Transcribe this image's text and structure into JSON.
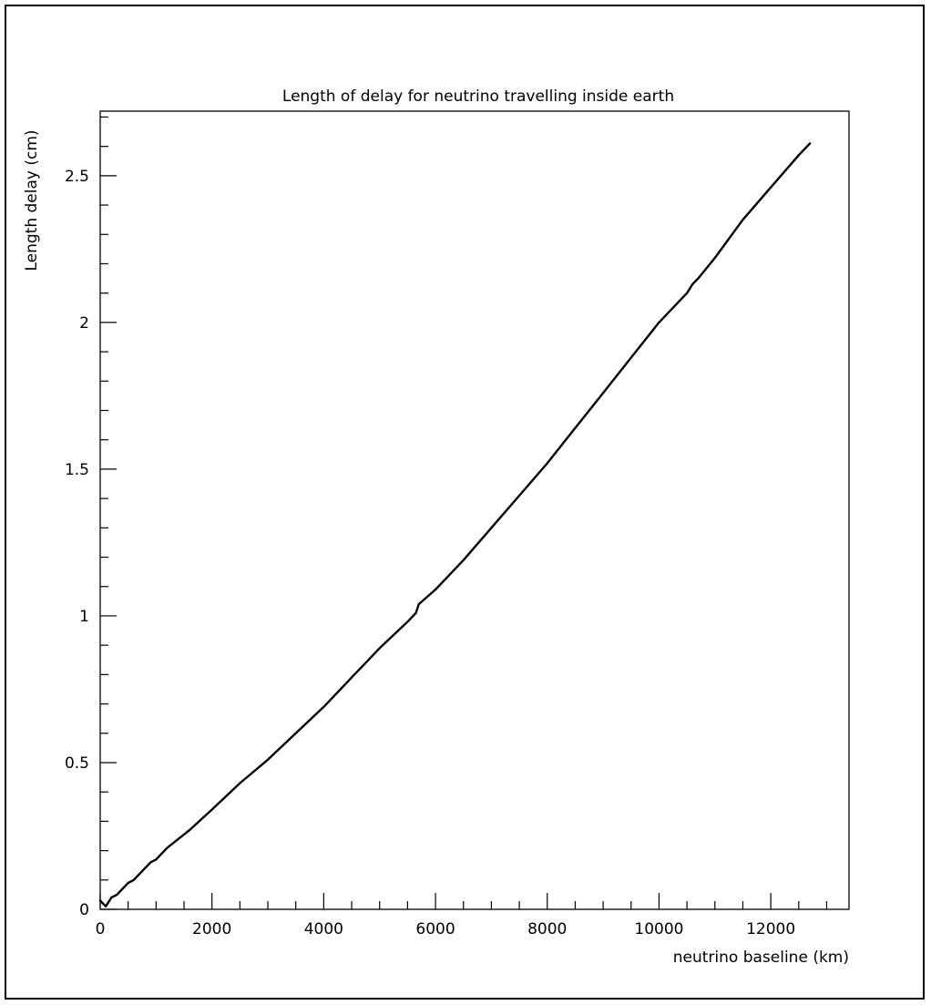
{
  "chart_data": {
    "type": "line",
    "title": "Length of delay for neutrino travelling inside earth",
    "xlabel": "neutrino baseline  (km)",
    "ylabel": "Length delay (cm)",
    "xlim": [
      0,
      13400
    ],
    "ylim": [
      0,
      2.72
    ],
    "x_ticks": [
      0,
      2000,
      4000,
      6000,
      8000,
      10000,
      12000
    ],
    "x_tick_labels": [
      "0",
      "2000",
      "4000",
      "6000",
      "8000",
      "10000",
      "12000"
    ],
    "y_ticks": [
      0,
      0.5,
      1,
      1.5,
      2,
      2.5
    ],
    "y_tick_labels": [
      "0",
      "0.5",
      "1",
      "1.5",
      "2",
      "2.5"
    ],
    "grid": false,
    "series": [
      {
        "x": [
          0,
          100,
          200,
          300,
          400,
          500,
          600,
          700,
          800,
          900,
          1000,
          1200,
          1400,
          1600,
          2000,
          2500,
          3000,
          3500,
          4000,
          4500,
          5000,
          5500,
          5650,
          5700,
          6000,
          6500,
          7000,
          7500,
          8000,
          8500,
          9000,
          9500,
          10000,
          10500,
          10600,
          10700,
          11000,
          11500,
          12000,
          12500,
          12700
        ],
        "y": [
          0.03,
          0.01,
          0.04,
          0.05,
          0.07,
          0.09,
          0.1,
          0.12,
          0.14,
          0.16,
          0.17,
          0.21,
          0.24,
          0.27,
          0.34,
          0.43,
          0.51,
          0.6,
          0.69,
          0.79,
          0.89,
          0.98,
          1.01,
          1.04,
          1.09,
          1.19,
          1.3,
          1.41,
          1.52,
          1.64,
          1.76,
          1.88,
          2.0,
          2.1,
          2.13,
          2.15,
          2.22,
          2.35,
          2.46,
          2.57,
          2.61
        ]
      }
    ]
  }
}
